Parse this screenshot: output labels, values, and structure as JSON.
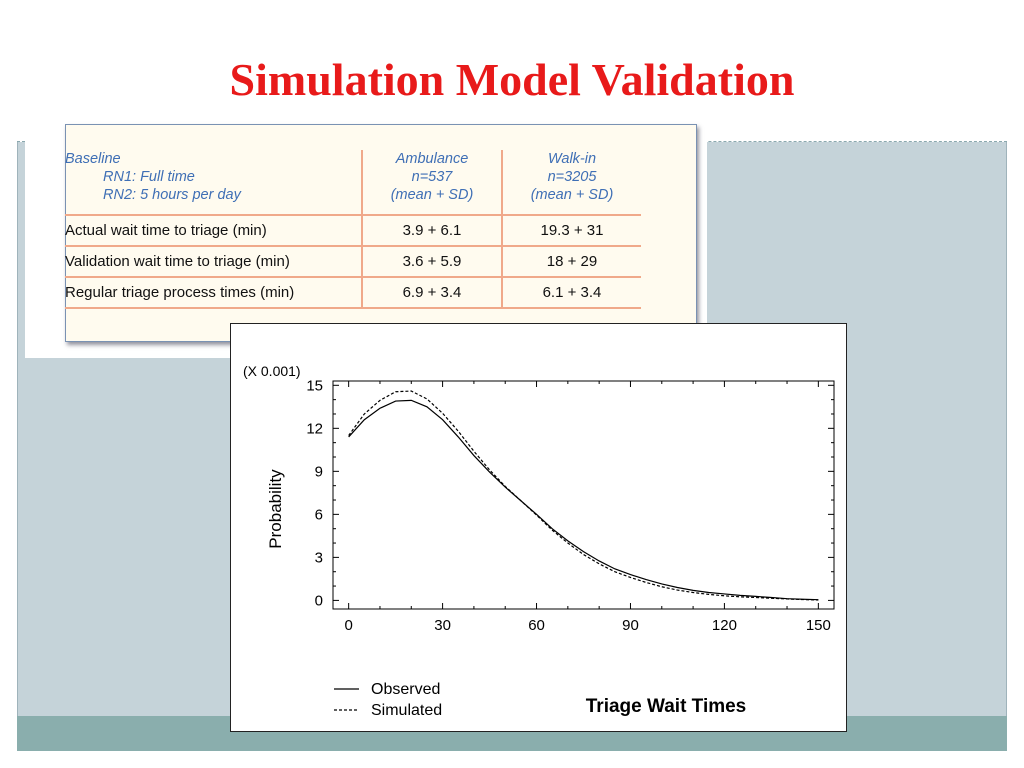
{
  "slide": {
    "title": "Simulation Model Validation"
  },
  "table": {
    "header": {
      "baseline": "Baseline",
      "rn1": "RN1: Full time",
      "rn2": "RN2: 5 hours per day",
      "col1_line1": "Ambulance",
      "col1_line2": "n=537",
      "col1_line3": "(mean + SD)",
      "col2_line1": "Walk-in",
      "col2_line2": "n=3205",
      "col2_line3": "(mean + SD)"
    },
    "rows": [
      {
        "label": "Actual wait time to triage (min)",
        "ambulance": "3.9 + 6.1",
        "walkin": "19.3 + 31"
      },
      {
        "label": "Validation wait time to triage (min)",
        "ambulance": "3.6 + 5.9",
        "walkin": "18 + 29"
      },
      {
        "label": "Regular triage process times (min)",
        "ambulance": "6.9 + 3.4",
        "walkin": "6.1 + 3.4"
      }
    ]
  },
  "chart_data": {
    "type": "line",
    "title": "Triage Wait Times",
    "scale_note": "(X 0.001)",
    "xlabel": "",
    "ylabel": "Probability",
    "xlim": [
      -5,
      155
    ],
    "ylim": [
      -0.6,
      15.3
    ],
    "x_ticks": [
      0,
      30,
      60,
      90,
      120,
      150
    ],
    "y_ticks": [
      0,
      3,
      6,
      9,
      12,
      15
    ],
    "x_tick_labels": [
      "0",
      "30",
      "60",
      "90",
      "120",
      "150"
    ],
    "y_tick_labels": [
      "0",
      "3",
      "6",
      "9",
      "12",
      "15"
    ],
    "legend_position": "bottom-left",
    "series": [
      {
        "name": "Observed",
        "style": "solid",
        "color": "#000000",
        "x": [
          0,
          5,
          10,
          15,
          20,
          25,
          30,
          35,
          40,
          45,
          50,
          55,
          60,
          65,
          70,
          75,
          80,
          85,
          90,
          95,
          100,
          105,
          110,
          115,
          120,
          125,
          130,
          135,
          140,
          145,
          150
        ],
        "y": [
          11.4,
          12.6,
          13.4,
          13.9,
          13.95,
          13.5,
          12.6,
          11.4,
          10.1,
          8.95,
          7.9,
          6.95,
          6.0,
          5.0,
          4.15,
          3.4,
          2.75,
          2.2,
          1.8,
          1.45,
          1.15,
          0.9,
          0.7,
          0.55,
          0.45,
          0.35,
          0.28,
          0.2,
          0.12,
          0.08,
          0.05
        ]
      },
      {
        "name": "Simulated",
        "style": "dashed",
        "color": "#000000",
        "x": [
          0,
          5,
          10,
          15,
          20,
          25,
          30,
          35,
          40,
          45,
          50,
          55,
          60,
          65,
          70,
          75,
          80,
          85,
          90,
          95,
          100,
          105,
          110,
          115,
          120,
          125,
          130,
          135,
          140,
          145,
          150
        ],
        "y": [
          11.5,
          13.0,
          13.95,
          14.55,
          14.6,
          14.05,
          13.05,
          11.8,
          10.4,
          9.1,
          7.95,
          6.95,
          5.95,
          4.9,
          4.0,
          3.2,
          2.55,
          2.0,
          1.6,
          1.25,
          0.95,
          0.72,
          0.55,
          0.42,
          0.32,
          0.25,
          0.2,
          0.15,
          0.1,
          0.06,
          0.03
        ]
      }
    ]
  }
}
